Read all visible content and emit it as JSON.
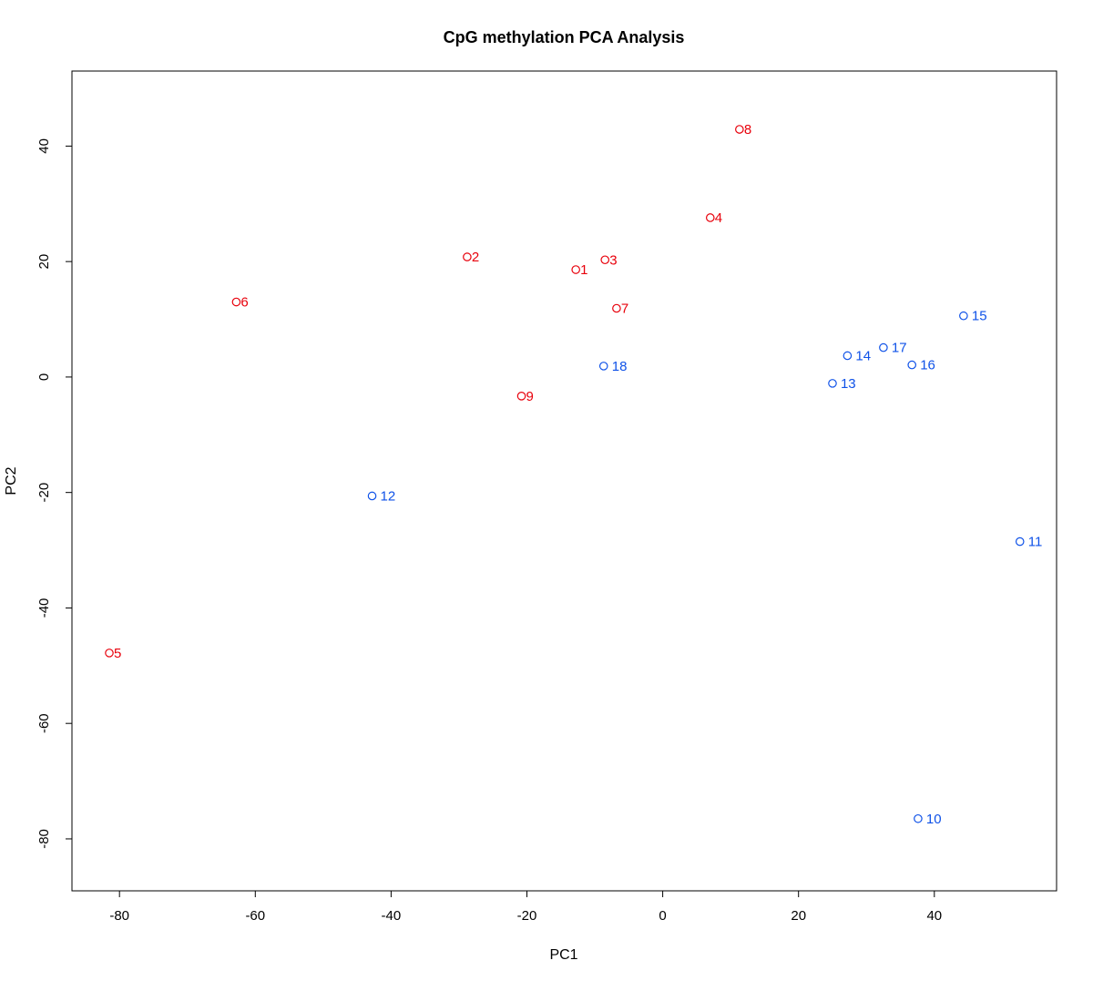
{
  "chart_data": {
    "type": "scatter",
    "title": "CpG methylation PCA Analysis",
    "xlabel": "PC1",
    "ylabel": "PC2",
    "xlim": [
      -87,
      58
    ],
    "ylim": [
      -89,
      53
    ],
    "xticks": [
      -80,
      -60,
      -40,
      -20,
      0,
      20,
      40
    ],
    "yticks": [
      -80,
      -60,
      -40,
      -20,
      0,
      20,
      40
    ],
    "grid": false,
    "legend": "none",
    "series": [
      {
        "color": "#e8000b",
        "points": [
          {
            "label": "1",
            "x": -12.8,
            "y": 18.6
          },
          {
            "label": "2",
            "x": -28.8,
            "y": 20.8
          },
          {
            "label": "3",
            "x": -8.5,
            "y": 20.3
          },
          {
            "label": "4",
            "x": 7.0,
            "y": 27.6
          },
          {
            "label": "5",
            "x": -81.5,
            "y": -47.8
          },
          {
            "label": "6",
            "x": -62.8,
            "y": 13.0
          },
          {
            "label": "7",
            "x": -6.8,
            "y": 11.9
          },
          {
            "label": "8",
            "x": 11.3,
            "y": 42.9
          },
          {
            "label": "9",
            "x": -20.8,
            "y": -3.3
          }
        ]
      },
      {
        "color": "#0f52e8",
        "points": [
          {
            "label": "10",
            "x": 37.6,
            "y": -76.5
          },
          {
            "label": "11",
            "x": 52.6,
            "y": -28.5
          },
          {
            "label": "12",
            "x": -42.8,
            "y": -20.6
          },
          {
            "label": "13",
            "x": 25.0,
            "y": -1.1
          },
          {
            "label": "14",
            "x": 27.2,
            "y": 3.7
          },
          {
            "label": "15",
            "x": 44.3,
            "y": 10.6
          },
          {
            "label": "16",
            "x": 36.7,
            "y": 2.1
          },
          {
            "label": "17",
            "x": 32.5,
            "y": 5.1
          },
          {
            "label": "18",
            "x": -8.7,
            "y": 1.9
          }
        ]
      }
    ]
  }
}
